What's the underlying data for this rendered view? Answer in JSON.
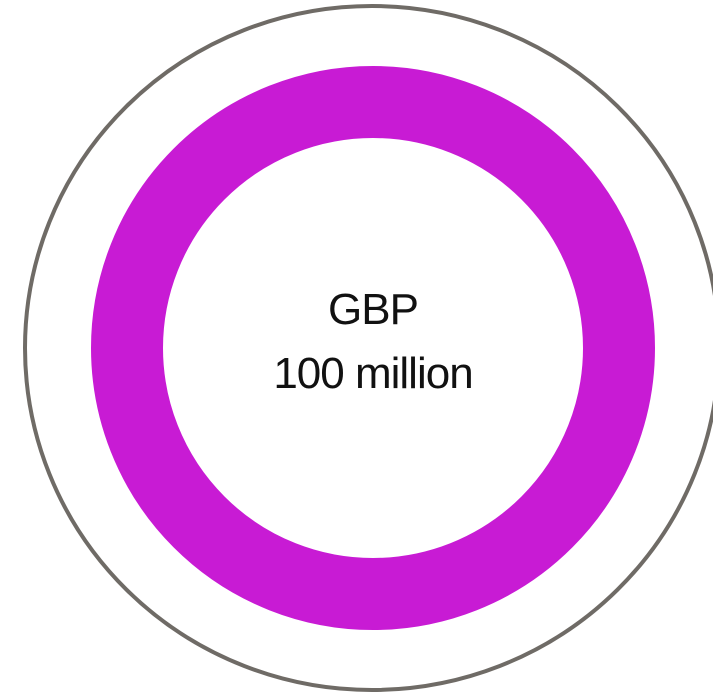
{
  "badge": {
    "currency": "GBP",
    "amount": "100 million"
  },
  "colors": {
    "outer_ring": "#6f6b66",
    "inner_ring": "#c81bd4",
    "background": "#ffffff",
    "text": "#111111"
  }
}
